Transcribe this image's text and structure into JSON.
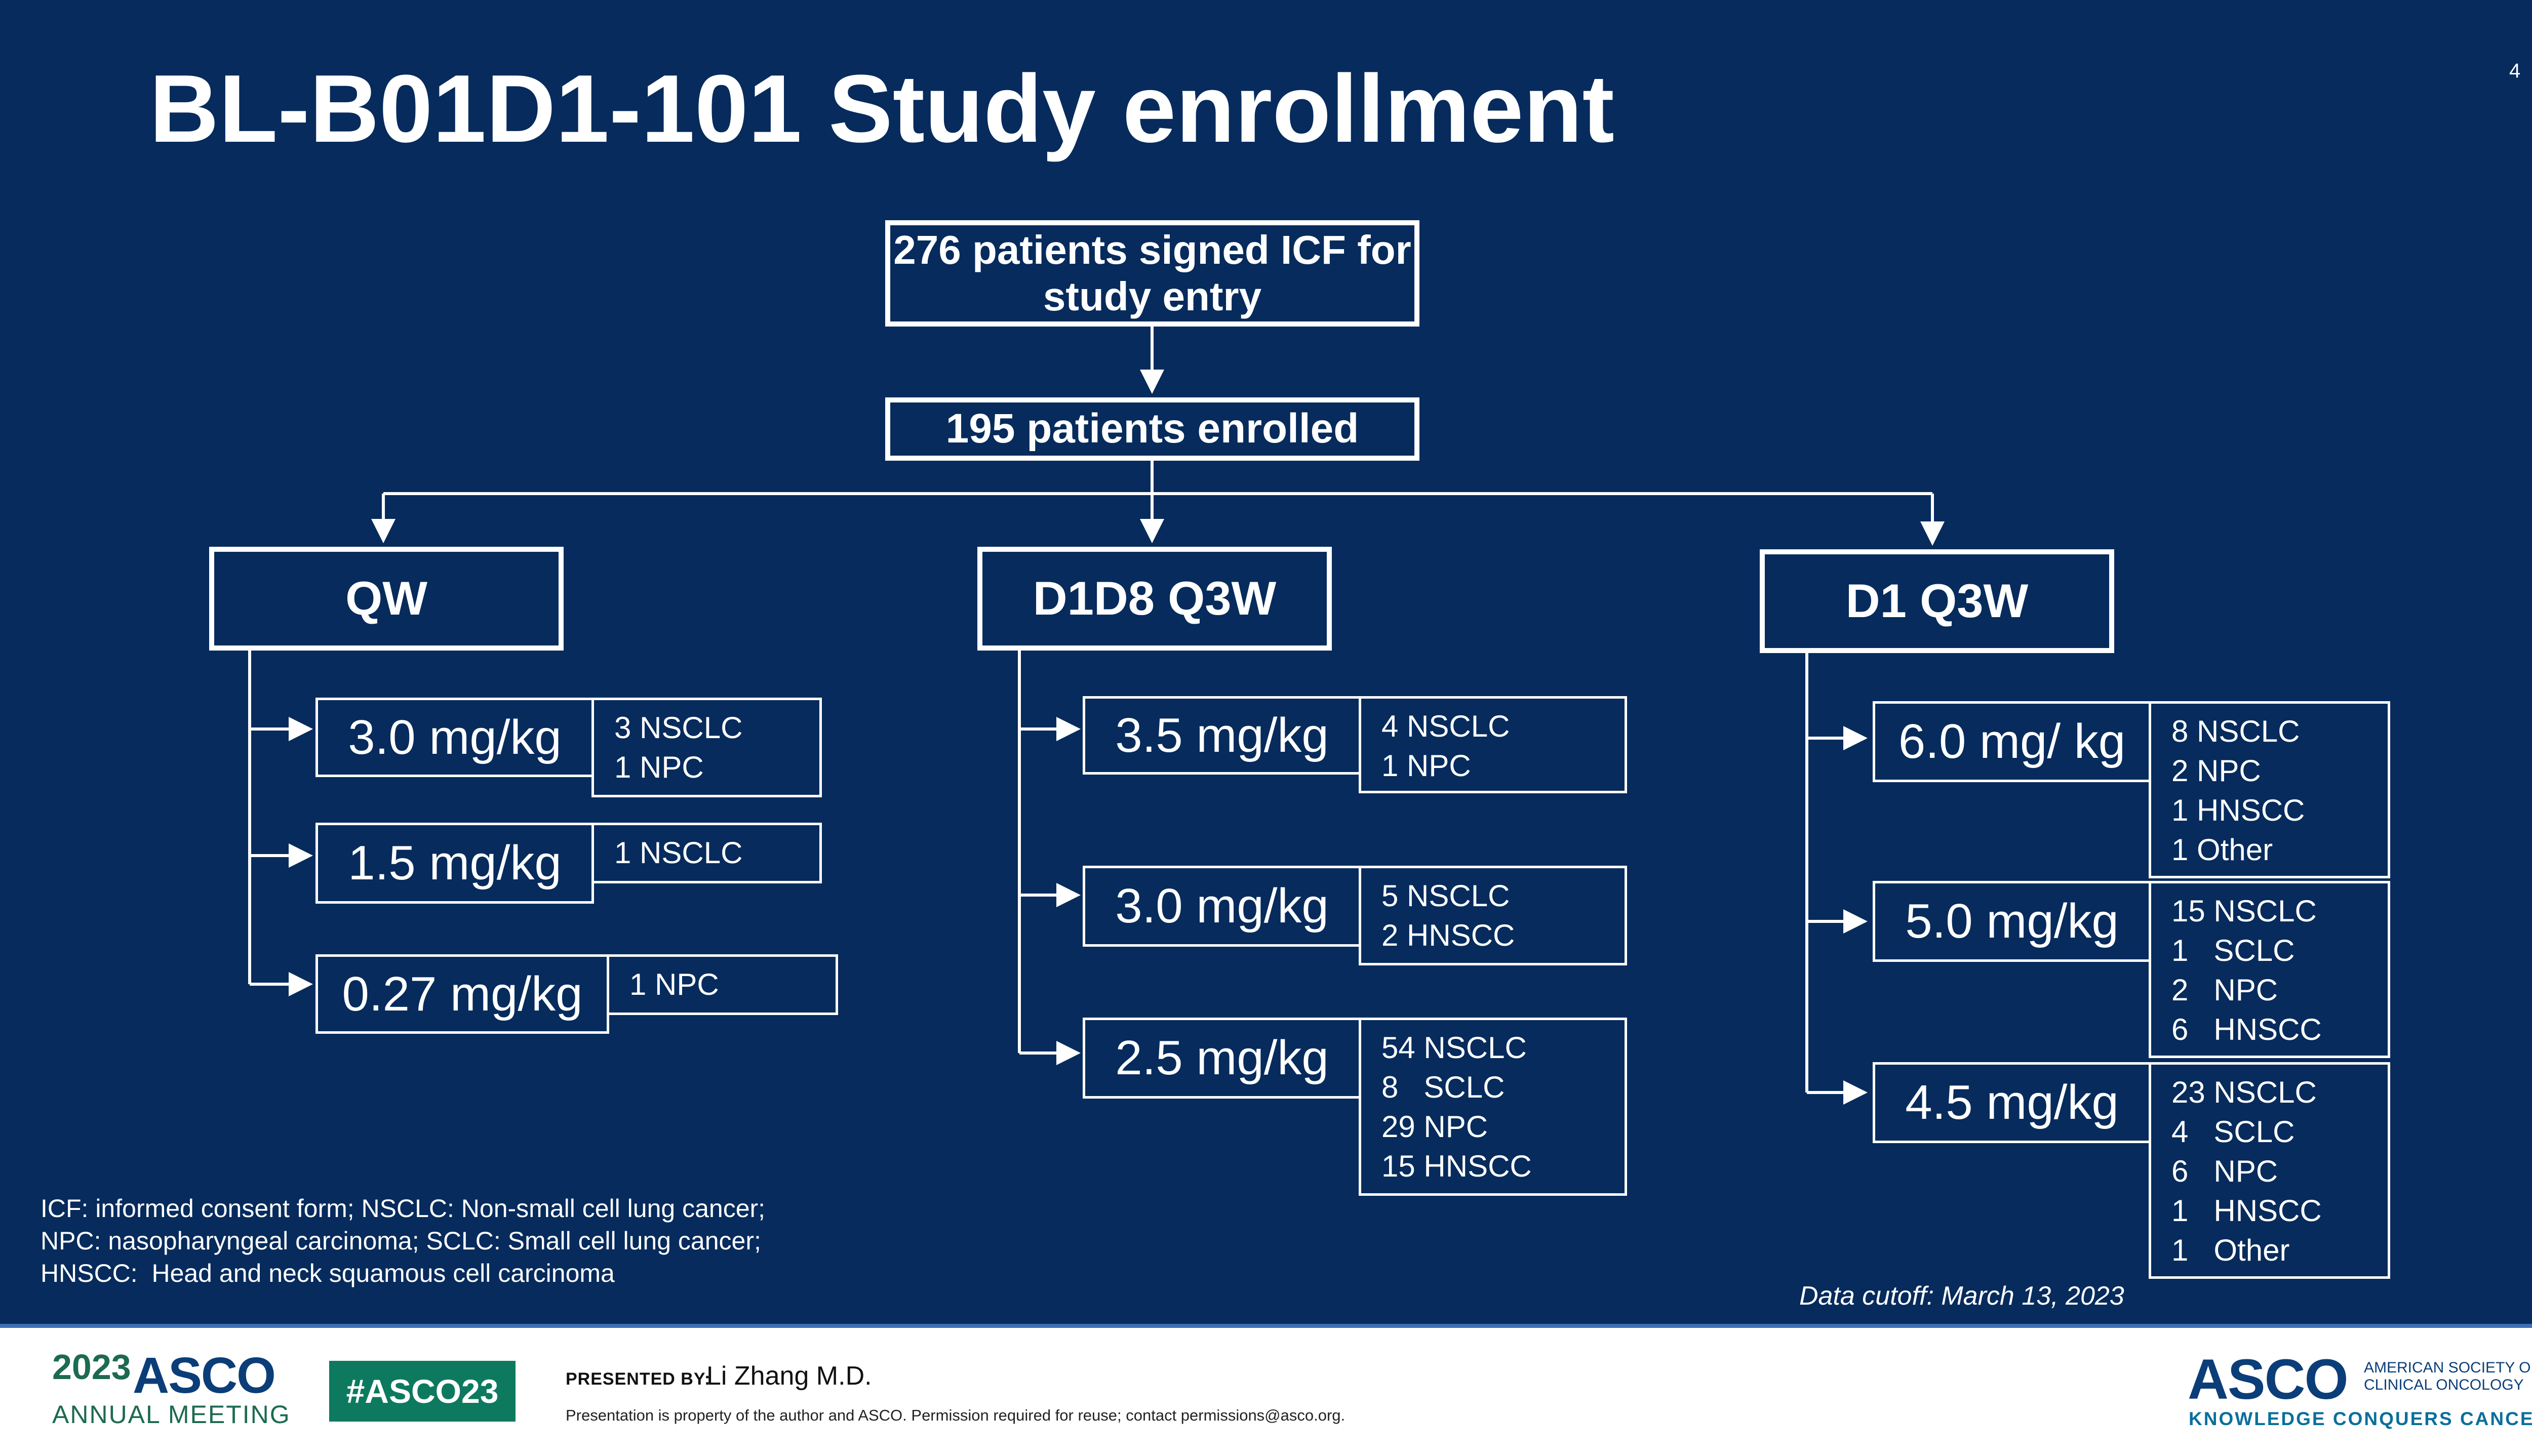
{
  "slide": {
    "title": "BL-B01D1-101 Study enrollment",
    "page_number": "4"
  },
  "flow": {
    "signed_icf": "276 patients signed ICF for study entry",
    "enrolled": "195 patients enrolled"
  },
  "arms": [
    {
      "label": "QW",
      "doses": [
        {
          "dose": "3.0 mg/kg",
          "indications": [
            "3 NSCLC",
            "1 NPC"
          ]
        },
        {
          "dose": "1.5 mg/kg",
          "indications": [
            "1 NSCLC"
          ]
        },
        {
          "dose": "0.27 mg/kg",
          "indications": [
            "1 NPC"
          ]
        }
      ]
    },
    {
      "label": "D1D8 Q3W",
      "doses": [
        {
          "dose": "3.5 mg/kg",
          "indications": [
            "4 NSCLC",
            "1 NPC"
          ]
        },
        {
          "dose": "3.0 mg/kg",
          "indications": [
            "5 NSCLC",
            "2 HNSCC"
          ]
        },
        {
          "dose": "2.5 mg/kg",
          "indications": [
            "54 NSCLC",
            "8   SCLC",
            "29 NPC",
            "15 HNSCC"
          ]
        }
      ]
    },
    {
      "label": "D1 Q3W",
      "doses": [
        {
          "dose": "6.0 mg/ kg",
          "indications": [
            "8 NSCLC",
            "2 NPC",
            "1 HNSCC",
            "1 Other"
          ]
        },
        {
          "dose": "5.0 mg/kg",
          "indications": [
            "15 NSCLC",
            "1   SCLC",
            "2   NPC",
            "6   HNSCC"
          ]
        },
        {
          "dose": "4.5 mg/kg",
          "indications": [
            "23 NSCLC",
            "4   SCLC",
            "6   NPC",
            "1   HNSCC",
            "1   Other"
          ]
        }
      ]
    }
  ],
  "footnote": "ICF: informed consent form; NSCLC: Non-small cell lung cancer;\nNPC: nasopharyngeal carcinoma; SCLC: Small cell lung cancer;\nHNSCC:  Head and neck squamous cell carcinoma",
  "data_cutoff": "Data cutoff: March 13, 2023",
  "footer": {
    "meeting_year": "2023",
    "meeting_asco": "ASCO",
    "meeting_sub": "ANNUAL MEETING",
    "hashtag": "#ASCO23",
    "presented_by_label": "PRESENTED BY:",
    "presenter": "Li Zhang M.D.",
    "disclaimer": "Presentation is property of the author and ASCO. Permission required for reuse; contact permissions@asco.org.",
    "asco_logo": "ASCO",
    "asco_society": "AMERICAN SOCIETY OF\nCLINICAL ONCOLOGY",
    "asco_tagline": "KNOWLEDGE CONQUERS CANCER"
  },
  "colors": {
    "slide_bg": "#062b5c",
    "hashtag_bg": "#0d7a5f",
    "asco_blue": "#0b3e78"
  }
}
